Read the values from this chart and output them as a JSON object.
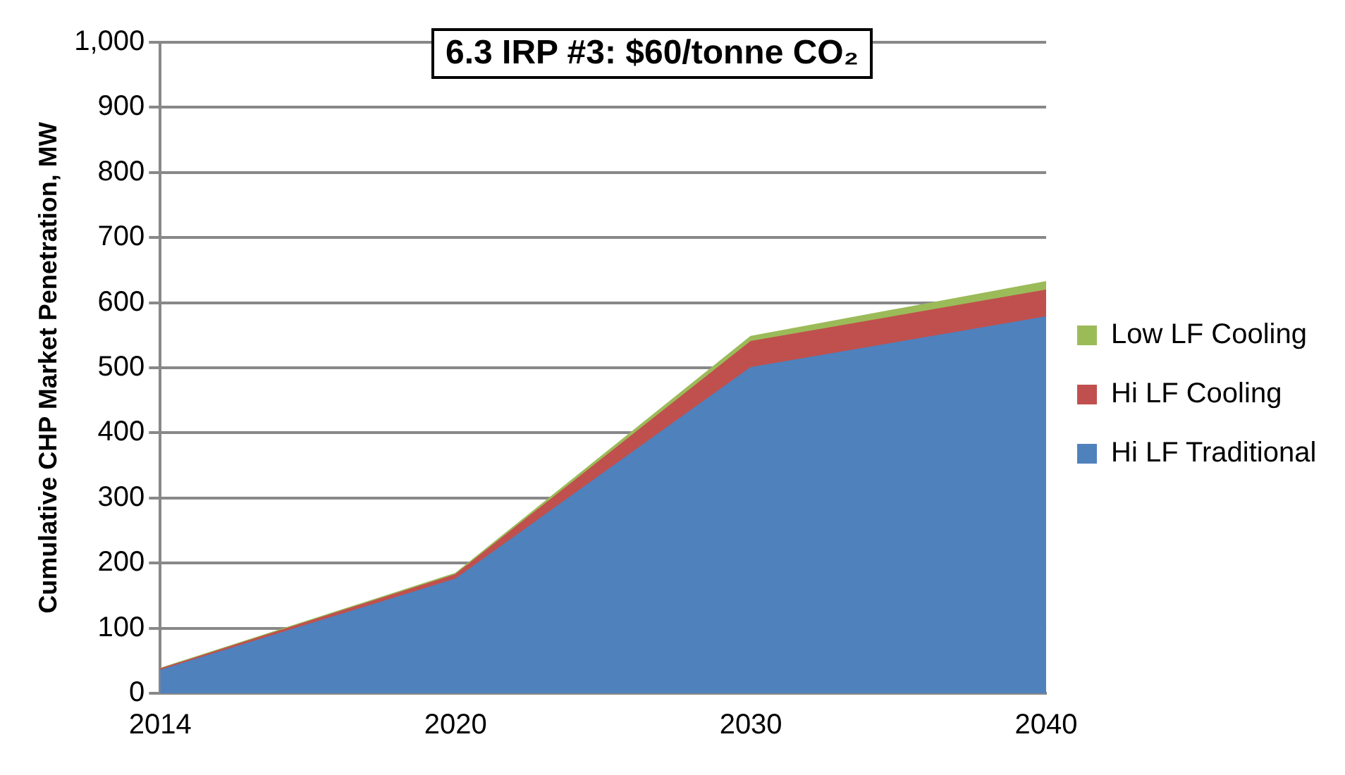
{
  "chart_data": {
    "type": "area",
    "title": "6.3 IRP #3: $60/tonne CO₂",
    "ylabel": "Cumulative CHP Market Penetration, MW",
    "categories": [
      "2014",
      "2020",
      "2030",
      "2040"
    ],
    "stacked": true,
    "series": [
      {
        "name": "Hi LF Traditional",
        "color": "#4f81bd",
        "values": [
          35,
          175,
          500,
          578
        ]
      },
      {
        "name": "Hi LF Cooling",
        "color": "#c0504d",
        "values": [
          2,
          7,
          40,
          41
        ]
      },
      {
        "name": "Low LF Cooling",
        "color": "#9bbb59",
        "values": [
          1,
          2,
          8,
          13
        ]
      }
    ],
    "ylim": [
      0,
      1000
    ],
    "yticks": [
      0,
      100,
      200,
      300,
      400,
      500,
      600,
      700,
      800,
      900,
      {
        "value": 1000,
        "label": "1,000"
      }
    ],
    "grid": "y",
    "legend": "right",
    "marker": "none"
  }
}
